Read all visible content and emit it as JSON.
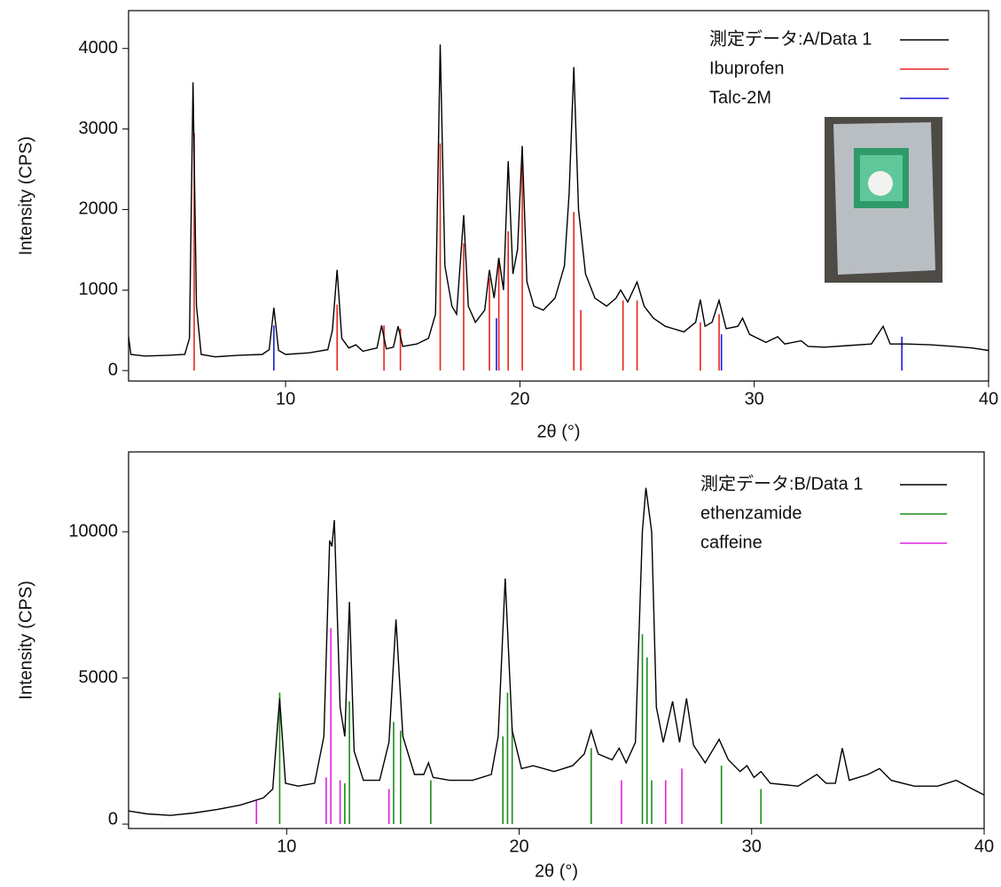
{
  "chart_data": [
    {
      "type": "line",
      "xlabel": "2θ (°)",
      "ylabel": "Intensity (CPS)",
      "legend": "upper right",
      "xlim": [
        3.3,
        40
      ],
      "xticks": [
        10,
        20,
        30,
        40
      ],
      "ylim": [
        -130,
        4470
      ],
      "yticks": [
        0,
        1000,
        2000,
        3000,
        4000
      ],
      "series": [
        {
          "name": "測定データ:A/Data 1",
          "color": "#000000",
          "x": [
            3.3,
            3.4,
            4,
            5,
            5.7,
            5.9,
            6.05,
            6.2,
            6.4,
            7,
            8,
            9,
            9.3,
            9.5,
            9.7,
            10,
            11,
            11.8,
            12.0,
            12.2,
            12.4,
            12.7,
            13.0,
            13.3,
            13.9,
            14.1,
            14.3,
            14.6,
            14.8,
            15,
            15.6,
            16.1,
            16.4,
            16.6,
            16.8,
            17.1,
            17.3,
            17.6,
            17.8,
            18.1,
            18.5,
            18.7,
            18.9,
            19.1,
            19.3,
            19.5,
            19.7,
            19.9,
            20.1,
            20.3,
            20.6,
            21,
            21.5,
            21.9,
            22.1,
            22.3,
            22.5,
            22.8,
            23.2,
            23.7,
            24.1,
            24.3,
            24.6,
            25.0,
            25.3,
            25.7,
            26.2,
            27,
            27.5,
            27.7,
            27.9,
            28.2,
            28.5,
            28.8,
            29.3,
            29.5,
            29.8,
            30.5,
            31,
            31.3,
            32,
            32.3,
            33,
            34,
            35,
            35.5,
            35.8,
            36.5,
            37.5,
            38.5,
            39.3,
            40
          ],
          "values": [
            420,
            200,
            180,
            190,
            200,
            400,
            3580,
            800,
            200,
            170,
            190,
            200,
            260,
            780,
            250,
            200,
            220,
            260,
            500,
            1250,
            400,
            280,
            320,
            240,
            280,
            560,
            270,
            290,
            550,
            300,
            330,
            400,
            700,
            4050,
            1300,
            800,
            700,
            1930,
            800,
            600,
            750,
            1250,
            900,
            1400,
            1000,
            2600,
            1200,
            1500,
            2790,
            1100,
            800,
            750,
            900,
            1300,
            2200,
            3770,
            2000,
            1200,
            900,
            800,
            900,
            1000,
            850,
            1100,
            800,
            650,
            550,
            480,
            600,
            880,
            550,
            600,
            870,
            520,
            550,
            650,
            450,
            350,
            420,
            330,
            370,
            300,
            290,
            310,
            330,
            550,
            330,
            330,
            320,
            300,
            280,
            250
          ]
        }
      ],
      "references": [
        {
          "name": "Ibuprofen",
          "color": "#e8231e",
          "x": [
            6.1,
            12.2,
            14.2,
            14.9,
            16.6,
            17.6,
            18.7,
            19.1,
            19.5,
            20.1,
            22.3,
            22.6,
            24.4,
            25.0,
            27.7,
            28.5
          ],
          "values": [
            2950,
            820,
            560,
            520,
            2820,
            1580,
            1150,
            1400,
            1730,
            2570,
            1970,
            750,
            870,
            870,
            600,
            700
          ]
        },
        {
          "name": "Talc-2M",
          "color": "#1a1adc",
          "x": [
            9.5,
            19.0,
            28.6,
            36.3
          ],
          "values": [
            560,
            650,
            450,
            420
          ]
        }
      ]
    },
    {
      "type": "line",
      "xlabel": "2θ (°)",
      "ylabel": "Intensity (CPS)",
      "legend": "upper right",
      "xlim": [
        3.2,
        40
      ],
      "xticks": [
        10,
        20,
        30,
        40
      ],
      "ylim": [
        -150,
        12730
      ],
      "yticks": [
        0,
        5000,
        10000
      ],
      "series": [
        {
          "name": "測定データ:B/Data 1",
          "color": "#000000",
          "x": [
            3.2,
            4,
            5,
            6,
            7,
            8,
            9,
            9.4,
            9.7,
            9.95,
            10.5,
            11.2,
            11.6,
            11.85,
            11.95,
            12.05,
            12.3,
            12.5,
            12.7,
            12.9,
            13.3,
            14.0,
            14.4,
            14.7,
            15.0,
            15.5,
            15.9,
            16.1,
            16.3,
            17,
            18,
            18.8,
            19.1,
            19.4,
            19.7,
            20.1,
            20.6,
            21.5,
            22.3,
            22.8,
            23.1,
            23.4,
            24,
            24.3,
            24.6,
            25.0,
            25.3,
            25.45,
            25.7,
            25.9,
            26.2,
            26.6,
            26.9,
            27.2,
            27.5,
            28,
            28.6,
            29,
            29.5,
            29.8,
            30.1,
            30.4,
            30.8,
            32,
            32.8,
            33.2,
            33.6,
            33.9,
            34.2,
            35,
            35.5,
            36,
            37,
            38,
            38.8,
            39.5,
            40
          ],
          "values": [
            450,
            350,
            300,
            380,
            500,
            650,
            900,
            1200,
            4300,
            1400,
            1300,
            1400,
            3000,
            9700,
            9500,
            10400,
            4000,
            3000,
            7600,
            2500,
            1500,
            1500,
            2800,
            7000,
            3000,
            1700,
            1700,
            2100,
            1600,
            1500,
            1500,
            1700,
            3000,
            8400,
            3200,
            1900,
            2000,
            1800,
            2000,
            2400,
            3200,
            2400,
            2200,
            2600,
            2100,
            2800,
            10000,
            11500,
            10000,
            4000,
            2800,
            4200,
            2800,
            4300,
            2700,
            2100,
            2900,
            2200,
            1800,
            2000,
            1600,
            1800,
            1400,
            1300,
            1700,
            1400,
            1400,
            2600,
            1500,
            1700,
            1900,
            1500,
            1300,
            1300,
            1500,
            1200,
            1000
          ]
        }
      ],
      "references": [
        {
          "name": "ethenzamide",
          "color": "#1a8c1a",
          "x": [
            9.7,
            12.5,
            12.7,
            14.6,
            14.9,
            16.2,
            19.3,
            19.5,
            19.7,
            23.1,
            25.3,
            25.5,
            25.7,
            28.7,
            30.4
          ],
          "values": [
            4500,
            1400,
            4200,
            3500,
            3200,
            1500,
            3000,
            4500,
            3300,
            2600,
            6500,
            5700,
            1500,
            2000,
            1200
          ]
        },
        {
          "name": "caffeine",
          "color": "#e020e0",
          "x": [
            8.7,
            11.7,
            11.9,
            12.3,
            14.4,
            24.4,
            26.3,
            27.0
          ],
          "values": [
            800,
            1600,
            6700,
            1500,
            1200,
            1500,
            1500,
            1900
          ]
        }
      ]
    }
  ]
}
